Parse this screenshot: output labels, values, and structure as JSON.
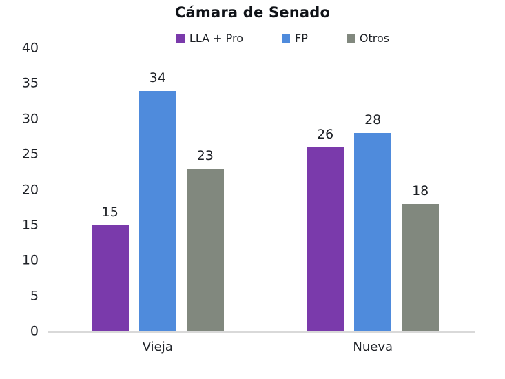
{
  "chart_data": {
    "type": "bar",
    "title": "Cámara de Senado",
    "categories": [
      "Vieja",
      "Nueva"
    ],
    "category_centers_pct": [
      25.6,
      76.0
    ],
    "series": [
      {
        "name": "LLA + Pro",
        "color": "#7a3aab",
        "values": [
          15,
          26
        ]
      },
      {
        "name": "FP",
        "color": "#4f8bdc",
        "values": [
          34,
          28
        ]
      },
      {
        "name": "Otros",
        "color": "#81887e",
        "values": [
          23,
          18
        ]
      }
    ],
    "ylim": [
      0,
      40
    ],
    "yticks": [
      0,
      5,
      10,
      15,
      20,
      25,
      30,
      35,
      40
    ],
    "grid": false,
    "legend_position": "top",
    "axis_line_color": "#d9d9d9",
    "background_color": "#ffffff"
  }
}
